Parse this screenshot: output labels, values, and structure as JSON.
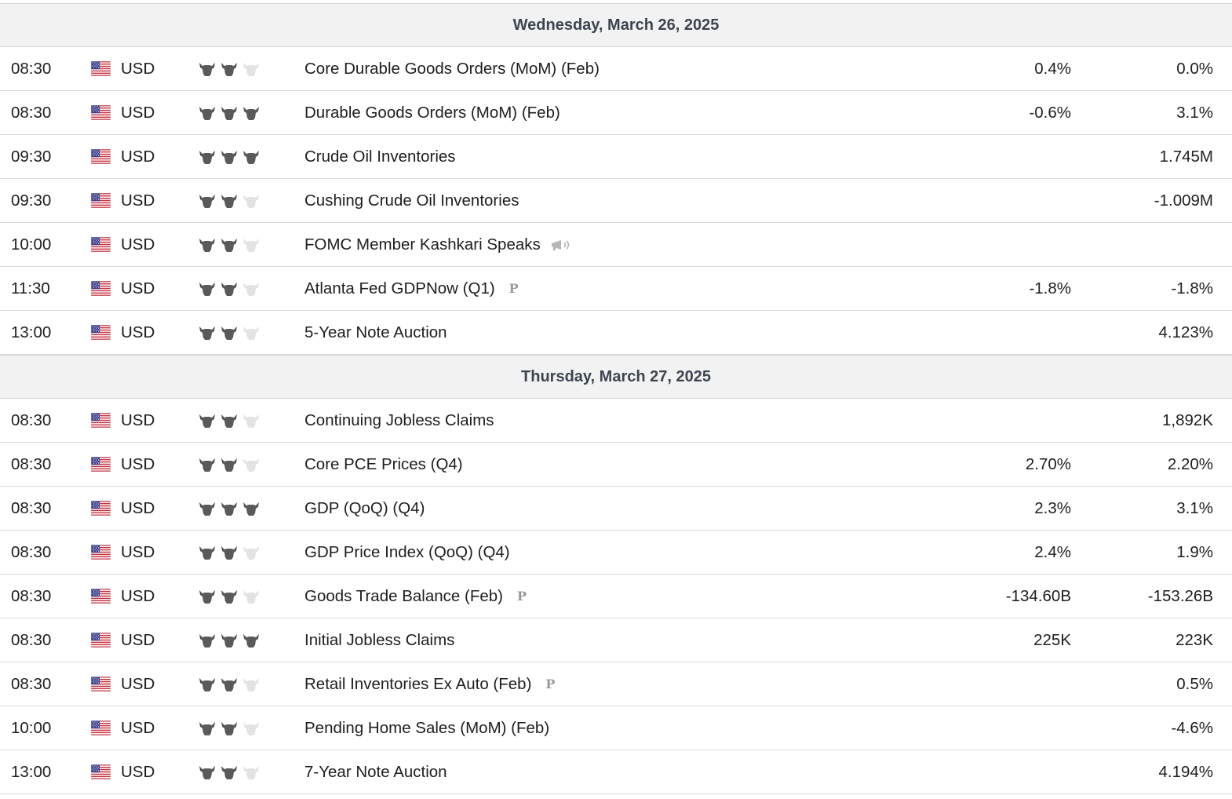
{
  "days": [
    {
      "date": "Wednesday, March 26, 2025",
      "events": [
        {
          "time": "08:30",
          "currency": "USD",
          "importance": 2,
          "name": "Core Durable Goods Orders (MoM) (Feb)",
          "tag": "",
          "forecast": "0.4%",
          "previous": "0.0%"
        },
        {
          "time": "08:30",
          "currency": "USD",
          "importance": 3,
          "name": "Durable Goods Orders (MoM) (Feb)",
          "tag": "",
          "forecast": "-0.6%",
          "previous": "3.1%"
        },
        {
          "time": "09:30",
          "currency": "USD",
          "importance": 3,
          "name": "Crude Oil Inventories",
          "tag": "",
          "forecast": "",
          "previous": "1.745M"
        },
        {
          "time": "09:30",
          "currency": "USD",
          "importance": 2,
          "name": "Cushing Crude Oil Inventories",
          "tag": "",
          "forecast": "",
          "previous": "-1.009M"
        },
        {
          "time": "10:00",
          "currency": "USD",
          "importance": 2,
          "name": "FOMC Member Kashkari Speaks",
          "tag": "speech",
          "forecast": "",
          "previous": ""
        },
        {
          "time": "11:30",
          "currency": "USD",
          "importance": 2,
          "name": "Atlanta Fed GDPNow (Q1)",
          "tag": "P",
          "forecast": "-1.8%",
          "previous": "-1.8%"
        },
        {
          "time": "13:00",
          "currency": "USD",
          "importance": 2,
          "name": "5-Year Note Auction",
          "tag": "",
          "forecast": "",
          "previous": "4.123%"
        }
      ]
    },
    {
      "date": "Thursday, March 27, 2025",
      "events": [
        {
          "time": "08:30",
          "currency": "USD",
          "importance": 2,
          "name": "Continuing Jobless Claims",
          "tag": "",
          "forecast": "",
          "previous": "1,892K"
        },
        {
          "time": "08:30",
          "currency": "USD",
          "importance": 2,
          "name": "Core PCE Prices (Q4)",
          "tag": "",
          "forecast": "2.70%",
          "previous": "2.20%"
        },
        {
          "time": "08:30",
          "currency": "USD",
          "importance": 3,
          "name": "GDP (QoQ) (Q4)",
          "tag": "",
          "forecast": "2.3%",
          "previous": "3.1%"
        },
        {
          "time": "08:30",
          "currency": "USD",
          "importance": 2,
          "name": "GDP Price Index (QoQ) (Q4)",
          "tag": "",
          "forecast": "2.4%",
          "previous": "1.9%"
        },
        {
          "time": "08:30",
          "currency": "USD",
          "importance": 2,
          "name": "Goods Trade Balance (Feb)",
          "tag": "P",
          "forecast": "-134.60B",
          "previous": "-153.26B"
        },
        {
          "time": "08:30",
          "currency": "USD",
          "importance": 3,
          "name": "Initial Jobless Claims",
          "tag": "",
          "forecast": "225K",
          "previous": "223K"
        },
        {
          "time": "08:30",
          "currency": "USD",
          "importance": 2,
          "name": "Retail Inventories Ex Auto (Feb)",
          "tag": "P",
          "forecast": "",
          "previous": "0.5%"
        },
        {
          "time": "10:00",
          "currency": "USD",
          "importance": 2,
          "name": "Pending Home Sales (MoM) (Feb)",
          "tag": "",
          "forecast": "",
          "previous": "-4.6%"
        },
        {
          "time": "13:00",
          "currency": "USD",
          "importance": 2,
          "name": "7-Year Note Auction",
          "tag": "",
          "forecast": "",
          "previous": "4.194%"
        }
      ]
    }
  ]
}
